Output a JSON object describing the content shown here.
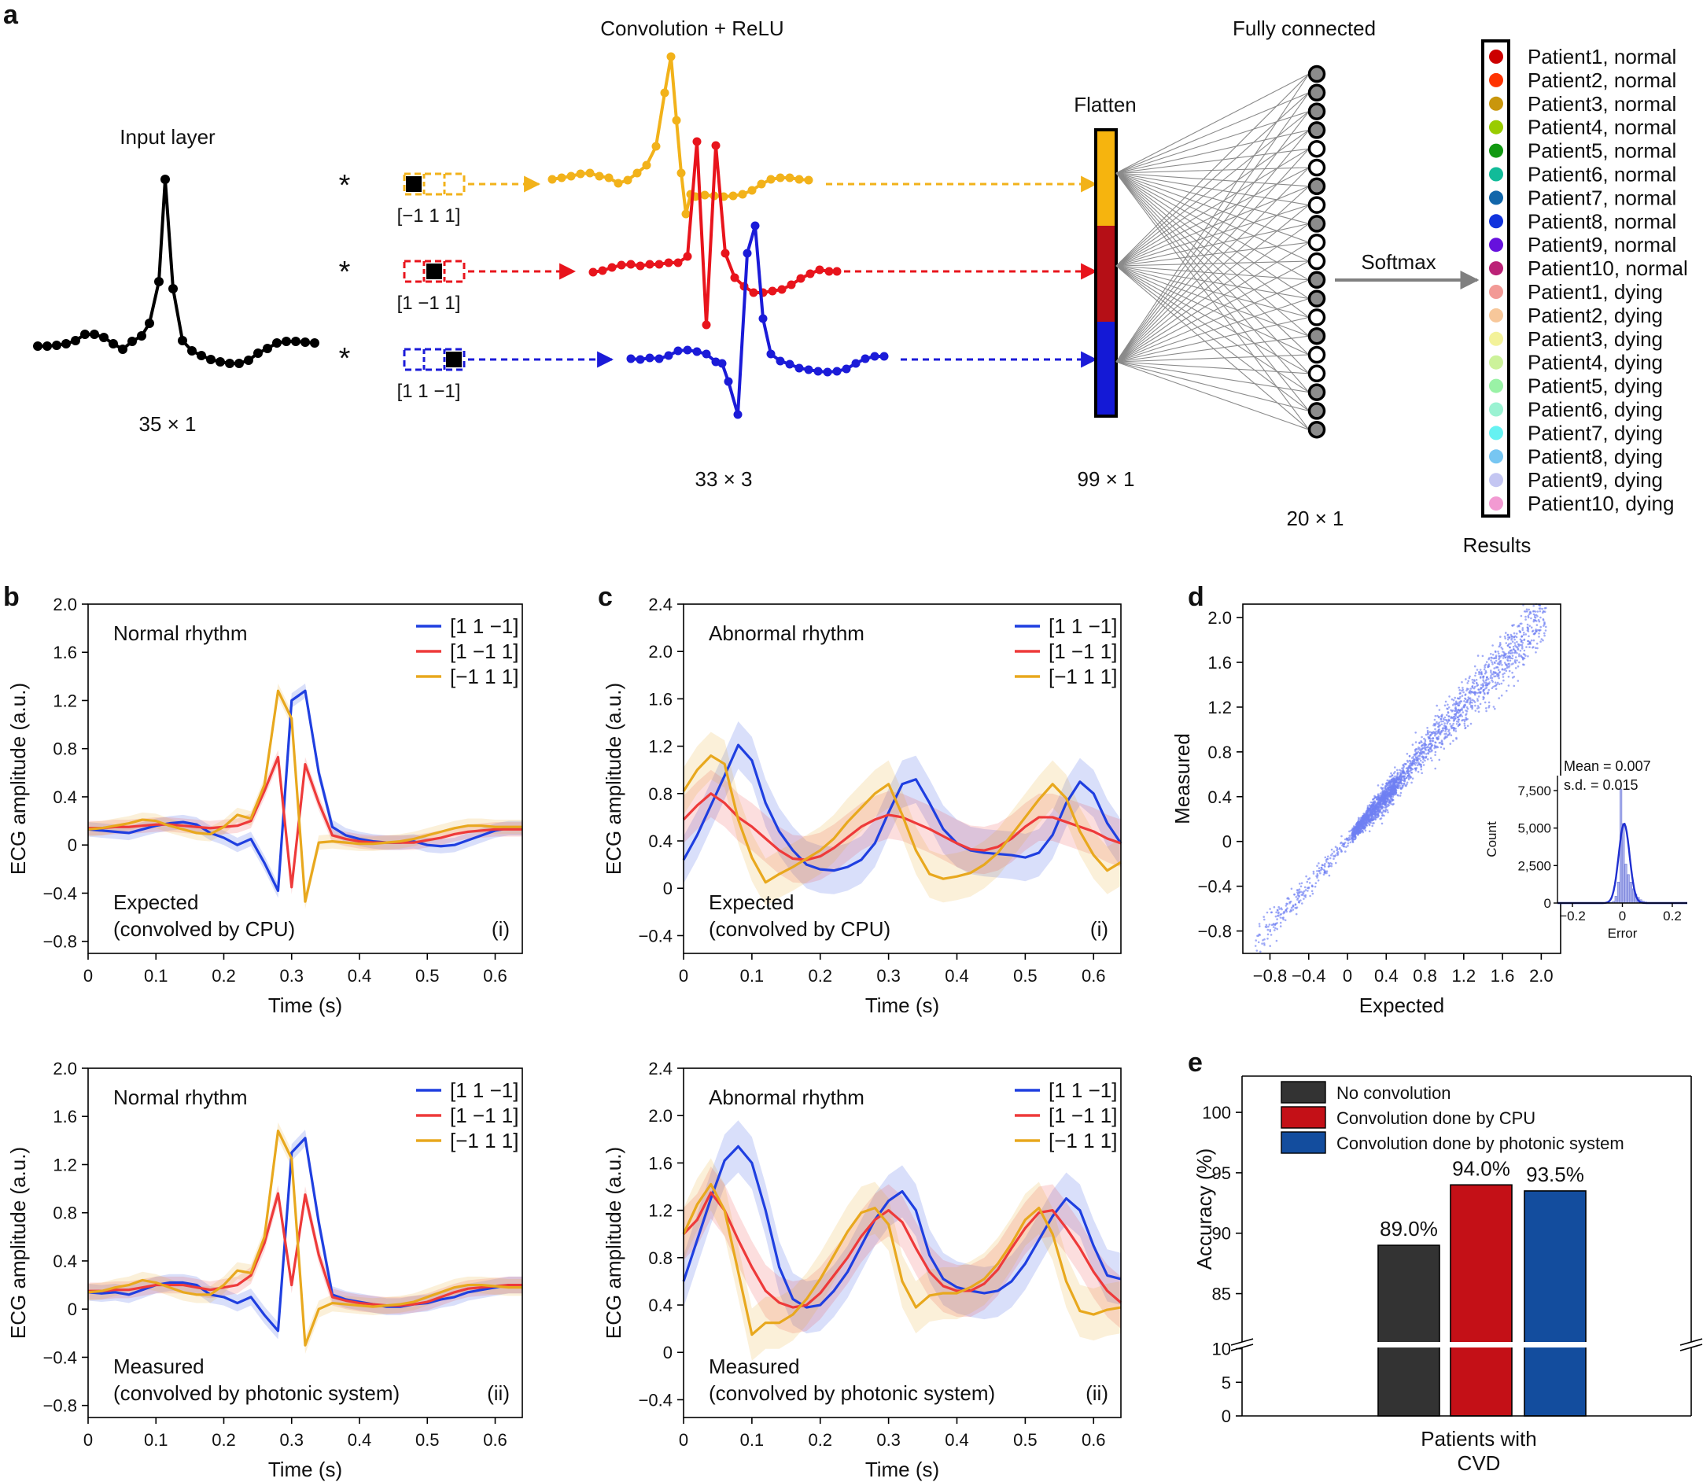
{
  "panel_labels": {
    "a": "a",
    "b": "b",
    "c": "c",
    "d": "d",
    "e": "e"
  },
  "diagram": {
    "input_title": "Input layer",
    "input_dim": "35 × 1",
    "conv_title": "Convolution + ReLU",
    "conv_dim": "33 × 3",
    "flatten_title": "Flatten",
    "flatten_dim": "99 × 1",
    "fc_title": "Fully connected",
    "fc_dim": "20 × 1",
    "softmax_label": "Softmax",
    "results_label": "Results",
    "star": "*",
    "kernels": [
      {
        "label": "[−1 1 1]",
        "color": "#f2b21a"
      },
      {
        "label": "[1 −1 1]",
        "color": "#e8141c"
      },
      {
        "label": "[1 1 −1]",
        "color": "#1b1bd8"
      }
    ],
    "flatten_colors": [
      "#f6b40e",
      "#b50f16",
      "#1419d6"
    ],
    "fc_node_fill": [
      "grey",
      "grey",
      "grey",
      "grey",
      "white",
      "white",
      "grey",
      "white",
      "grey",
      "white",
      "white",
      "grey",
      "grey",
      "white",
      "grey",
      "white",
      "white",
      "grey",
      "grey",
      "grey"
    ],
    "results": [
      {
        "label": "Patient1, normal",
        "color": "#cc0000"
      },
      {
        "label": "Patient2, normal",
        "color": "#ff3300"
      },
      {
        "label": "Patient3, normal",
        "color": "#c9960c"
      },
      {
        "label": "Patient4, normal",
        "color": "#99cc00"
      },
      {
        "label": "Patient5, normal",
        "color": "#119911"
      },
      {
        "label": "Patient6, normal",
        "color": "#11bb99"
      },
      {
        "label": "Patient7, normal",
        "color": "#1166aa"
      },
      {
        "label": "Patient8, normal",
        "color": "#1133dd"
      },
      {
        "label": "Patient9, normal",
        "color": "#6611dd"
      },
      {
        "label": "Patient10, normal",
        "color": "#bb2277"
      },
      {
        "label": "Patient1, dying",
        "color": "#f29a96"
      },
      {
        "label": "Patient2, dying",
        "color": "#f7c79a"
      },
      {
        "label": "Patient3, dying",
        "color": "#f3f29a"
      },
      {
        "label": "Patient4, dying",
        "color": "#ccf29a"
      },
      {
        "label": "Patient5, dying",
        "color": "#9af2a6"
      },
      {
        "label": "Patient6, dying",
        "color": "#9af2d2"
      },
      {
        "label": "Patient7, dying",
        "color": "#66f2f2"
      },
      {
        "label": "Patient8, dying",
        "color": "#77c6f2"
      },
      {
        "label": "Patient9, dying",
        "color": "#c4c6f2"
      },
      {
        "label": "Patient10, dying",
        "color": "#f29ad2"
      }
    ]
  },
  "chart_data": [
    {
      "id": "b-i",
      "type": "line",
      "title": "Normal rhythm",
      "note_line1": "Expected",
      "note_line2": "(convolved by CPU)",
      "tag": "(i)",
      "xlabel": "Time (s)",
      "ylabel": "ECG amplitude (a.u.)",
      "xlim": [
        0,
        0.64
      ],
      "ylim": [
        -0.9,
        2.0
      ],
      "xticks": [
        0,
        0.1,
        0.2,
        0.3,
        0.4,
        0.5,
        0.6
      ],
      "xtick_labels": [
        "0",
        "0.1",
        "0.2",
        "0.3",
        "0.4",
        "0.5",
        "0.6"
      ],
      "yticks": [
        -0.8,
        -0.4,
        0,
        0.4,
        0.8,
        1.2,
        1.6,
        2.0
      ],
      "ytick_labels": [
        "−0.8",
        "−0.4",
        "0",
        "0.4",
        "0.8",
        "1.2",
        "1.6",
        "2.0"
      ],
      "band": 0.06,
      "x": [
        0,
        0.02,
        0.04,
        0.06,
        0.08,
        0.1,
        0.12,
        0.14,
        0.16,
        0.18,
        0.2,
        0.22,
        0.24,
        0.26,
        0.28,
        0.3,
        0.32,
        0.34,
        0.36,
        0.38,
        0.4,
        0.42,
        0.44,
        0.46,
        0.48,
        0.5,
        0.52,
        0.54,
        0.56,
        0.58,
        0.6,
        0.62,
        0.64
      ],
      "series": [
        {
          "name": "[1 1 −1]",
          "color": "#1f3fe0",
          "values": [
            0.13,
            0.12,
            0.11,
            0.1,
            0.13,
            0.16,
            0.18,
            0.19,
            0.17,
            0.1,
            0.06,
            0.0,
            0.05,
            -0.15,
            -0.38,
            1.2,
            1.28,
            0.6,
            0.15,
            0.08,
            0.05,
            0.03,
            0.02,
            0.02,
            0.03,
            0.0,
            -0.01,
            0.0,
            0.04,
            0.08,
            0.12,
            0.14,
            0.14
          ]
        },
        {
          "name": "[1 −1 1]",
          "color": "#ee3a3a",
          "values": [
            0.14,
            0.14,
            0.15,
            0.15,
            0.16,
            0.17,
            0.17,
            0.16,
            0.15,
            0.14,
            0.15,
            0.16,
            0.2,
            0.45,
            0.73,
            -0.35,
            0.67,
            0.35,
            0.08,
            0.05,
            0.03,
            0.02,
            0.02,
            0.02,
            0.02,
            0.04,
            0.06,
            0.09,
            0.11,
            0.12,
            0.13,
            0.13,
            0.13
          ]
        },
        {
          "name": "[−1 1 1]",
          "color": "#e8a81e",
          "values": [
            0.13,
            0.14,
            0.16,
            0.18,
            0.21,
            0.2,
            0.16,
            0.13,
            0.1,
            0.09,
            0.15,
            0.25,
            0.22,
            0.5,
            1.28,
            1.05,
            -0.47,
            0.02,
            0.03,
            0.02,
            0.01,
            0.01,
            0.02,
            0.03,
            0.05,
            0.08,
            0.11,
            0.14,
            0.16,
            0.16,
            0.15,
            0.15,
            0.15
          ]
        }
      ]
    },
    {
      "id": "c-i",
      "type": "line",
      "title": "Abnormal rhythm",
      "note_line1": "Expected",
      "note_line2": "(convolved by CPU)",
      "tag": "(i)",
      "xlabel": "Time (s)",
      "ylabel": "ECG amplitude (a.u.)",
      "xlim": [
        0,
        0.64
      ],
      "ylim": [
        -0.55,
        2.4
      ],
      "xticks": [
        0,
        0.1,
        0.2,
        0.3,
        0.4,
        0.5,
        0.6
      ],
      "xtick_labels": [
        "0",
        "0.1",
        "0.2",
        "0.3",
        "0.4",
        "0.5",
        "0.6"
      ],
      "yticks": [
        -0.4,
        0,
        0.4,
        0.8,
        1.2,
        1.6,
        2.0,
        2.4
      ],
      "ytick_labels": [
        "−0.4",
        "0",
        "0.4",
        "0.8",
        "1.2",
        "1.6",
        "2.0",
        "2.4"
      ],
      "band": 0.2,
      "x": [
        0,
        0.02,
        0.04,
        0.06,
        0.08,
        0.1,
        0.12,
        0.14,
        0.16,
        0.18,
        0.2,
        0.22,
        0.24,
        0.26,
        0.28,
        0.3,
        0.32,
        0.34,
        0.36,
        0.38,
        0.4,
        0.42,
        0.44,
        0.46,
        0.48,
        0.5,
        0.52,
        0.54,
        0.56,
        0.58,
        0.6,
        0.62,
        0.64
      ],
      "series": [
        {
          "name": "[1 1 −1]",
          "color": "#1f3fe0",
          "values": [
            0.24,
            0.45,
            0.7,
            0.95,
            1.21,
            1.08,
            0.72,
            0.48,
            0.32,
            0.2,
            0.16,
            0.15,
            0.18,
            0.24,
            0.38,
            0.64,
            0.88,
            0.92,
            0.72,
            0.5,
            0.38,
            0.32,
            0.3,
            0.29,
            0.28,
            0.26,
            0.3,
            0.45,
            0.72,
            0.9,
            0.8,
            0.55,
            0.38
          ]
        },
        {
          "name": "[1 −1 1]",
          "color": "#ee3a3a",
          "values": [
            0.58,
            0.7,
            0.8,
            0.72,
            0.6,
            0.52,
            0.42,
            0.32,
            0.25,
            0.24,
            0.27,
            0.34,
            0.43,
            0.52,
            0.58,
            0.62,
            0.6,
            0.55,
            0.5,
            0.44,
            0.38,
            0.33,
            0.32,
            0.35,
            0.42,
            0.52,
            0.6,
            0.6,
            0.56,
            0.52,
            0.48,
            0.42,
            0.38
          ]
        },
        {
          "name": "[−1 1 1]",
          "color": "#e8a81e",
          "values": [
            0.82,
            1.0,
            1.12,
            1.05,
            0.58,
            0.26,
            0.05,
            0.12,
            0.18,
            0.25,
            0.32,
            0.42,
            0.56,
            0.68,
            0.8,
            0.88,
            0.62,
            0.32,
            0.12,
            0.08,
            0.1,
            0.13,
            0.2,
            0.3,
            0.45,
            0.6,
            0.75,
            0.88,
            0.76,
            0.48,
            0.28,
            0.15,
            0.22
          ]
        }
      ]
    },
    {
      "id": "b-ii",
      "type": "line",
      "title": "Normal rhythm",
      "note_line1": "Measured",
      "note_line2": "(convolved by photonic system)",
      "tag": "(ii)",
      "xlabel": "Time (s)",
      "ylabel": "ECG amplitude (a.u.)",
      "xlim": [
        0,
        0.64
      ],
      "ylim": [
        -0.9,
        2.0
      ],
      "xticks": [
        0,
        0.1,
        0.2,
        0.3,
        0.4,
        0.5,
        0.6
      ],
      "xtick_labels": [
        "0",
        "0.1",
        "0.2",
        "0.3",
        "0.4",
        "0.5",
        "0.6"
      ],
      "yticks": [
        -0.8,
        -0.4,
        0,
        0.4,
        0.8,
        1.2,
        1.6,
        2.0
      ],
      "ytick_labels": [
        "−0.8",
        "−0.4",
        "0",
        "0.4",
        "0.8",
        "1.2",
        "1.6",
        "2.0"
      ],
      "band": 0.07,
      "x": [
        0,
        0.02,
        0.04,
        0.06,
        0.08,
        0.1,
        0.12,
        0.14,
        0.16,
        0.18,
        0.2,
        0.22,
        0.24,
        0.26,
        0.28,
        0.3,
        0.32,
        0.34,
        0.36,
        0.38,
        0.4,
        0.42,
        0.44,
        0.46,
        0.48,
        0.5,
        0.52,
        0.54,
        0.56,
        0.58,
        0.6,
        0.62,
        0.64
      ],
      "series": [
        {
          "name": "[1 1 −1]",
          "color": "#1f3fe0",
          "values": [
            0.14,
            0.13,
            0.14,
            0.12,
            0.16,
            0.2,
            0.22,
            0.22,
            0.2,
            0.12,
            0.1,
            0.05,
            0.1,
            -0.05,
            -0.18,
            1.3,
            1.42,
            0.72,
            0.12,
            0.08,
            0.06,
            0.04,
            0.02,
            0.02,
            0.04,
            0.05,
            0.08,
            0.1,
            0.14,
            0.16,
            0.18,
            0.2,
            0.2
          ]
        },
        {
          "name": "[1 −1 1]",
          "color": "#ee3a3a",
          "values": [
            0.15,
            0.15,
            0.16,
            0.16,
            0.18,
            0.2,
            0.2,
            0.2,
            0.18,
            0.16,
            0.18,
            0.2,
            0.28,
            0.55,
            0.96,
            0.2,
            0.95,
            0.45,
            0.1,
            0.07,
            0.05,
            0.04,
            0.03,
            0.03,
            0.04,
            0.06,
            0.1,
            0.14,
            0.17,
            0.18,
            0.19,
            0.2,
            0.2
          ]
        },
        {
          "name": "[−1 1 1]",
          "color": "#e8a81e",
          "values": [
            0.14,
            0.15,
            0.18,
            0.2,
            0.24,
            0.22,
            0.18,
            0.14,
            0.12,
            0.12,
            0.2,
            0.32,
            0.3,
            0.6,
            1.48,
            1.25,
            -0.3,
            0.0,
            0.05,
            0.04,
            0.03,
            0.02,
            0.03,
            0.04,
            0.06,
            0.1,
            0.14,
            0.18,
            0.2,
            0.2,
            0.19,
            0.18,
            0.18
          ]
        }
      ]
    },
    {
      "id": "c-ii",
      "type": "line",
      "title": "Abnormal rhythm",
      "note_line1": "Measured",
      "note_line2": "(convolved by   photonic system)",
      "tag": "(ii)",
      "xlabel": "Time (s)",
      "ylabel": "ECG amplitude (a.u.)",
      "xlim": [
        0,
        0.64
      ],
      "ylim": [
        -0.55,
        2.4
      ],
      "xticks": [
        0,
        0.1,
        0.2,
        0.3,
        0.4,
        0.5,
        0.6
      ],
      "xtick_labels": [
        "0",
        "0.1",
        "0.2",
        "0.3",
        "0.4",
        "0.5",
        "0.6"
      ],
      "yticks": [
        -0.4,
        0,
        0.4,
        0.8,
        1.2,
        1.6,
        2.0,
        2.4
      ],
      "ytick_labels": [
        "−0.4",
        "0",
        "0.4",
        "0.8",
        "1.2",
        "1.6",
        "2.0",
        "2.4"
      ],
      "band": 0.22,
      "x": [
        0,
        0.02,
        0.04,
        0.06,
        0.08,
        0.1,
        0.12,
        0.14,
        0.16,
        0.18,
        0.2,
        0.22,
        0.24,
        0.26,
        0.28,
        0.3,
        0.32,
        0.34,
        0.36,
        0.38,
        0.4,
        0.42,
        0.44,
        0.46,
        0.48,
        0.5,
        0.52,
        0.54,
        0.56,
        0.58,
        0.6,
        0.62,
        0.64
      ],
      "series": [
        {
          "name": "[1 1 −1]",
          "color": "#1f3fe0",
          "values": [
            0.6,
            0.95,
            1.3,
            1.62,
            1.74,
            1.6,
            1.2,
            0.72,
            0.45,
            0.38,
            0.4,
            0.52,
            0.68,
            0.9,
            1.12,
            1.28,
            1.36,
            1.2,
            0.82,
            0.62,
            0.55,
            0.52,
            0.5,
            0.52,
            0.6,
            0.75,
            0.95,
            1.15,
            1.3,
            1.2,
            0.9,
            0.65,
            0.62
          ]
        },
        {
          "name": "[1 −1 1]",
          "color": "#ee3a3a",
          "values": [
            1.0,
            1.12,
            1.35,
            1.2,
            0.95,
            0.72,
            0.52,
            0.42,
            0.38,
            0.4,
            0.5,
            0.65,
            0.8,
            0.98,
            1.12,
            1.2,
            1.1,
            0.88,
            0.68,
            0.56,
            0.52,
            0.52,
            0.58,
            0.7,
            0.88,
            1.05,
            1.18,
            1.2,
            1.05,
            0.88,
            0.68,
            0.52,
            0.42
          ]
        },
        {
          "name": "[−1 1 1]",
          "color": "#e8a81e",
          "values": [
            1.0,
            1.25,
            1.42,
            1.2,
            0.68,
            0.15,
            0.25,
            0.25,
            0.32,
            0.45,
            0.62,
            0.82,
            1.02,
            1.18,
            1.22,
            1.08,
            0.6,
            0.38,
            0.48,
            0.5,
            0.5,
            0.55,
            0.62,
            0.75,
            0.92,
            1.12,
            1.22,
            1.0,
            0.6,
            0.35,
            0.32,
            0.36,
            0.38
          ]
        }
      ]
    },
    {
      "id": "d",
      "type": "scatter",
      "xlabel": "Expected",
      "ylabel": "Measured",
      "xlim": [
        -1.08,
        2.2
      ],
      "ylim": [
        -1.0,
        2.12
      ],
      "xticks": [
        -0.8,
        -0.4,
        0,
        0.4,
        0.8,
        1.2,
        1.6,
        2.0
      ],
      "xtick_labels": [
        "−0.8",
        "−0.4",
        "0",
        "0.4",
        "0.8",
        "1.2",
        "1.6",
        "2.0"
      ],
      "yticks": [
        -0.8,
        -0.4,
        0,
        0.4,
        0.8,
        1.2,
        1.6,
        2.0
      ],
      "ytick_labels": [
        "−0.8",
        "−0.4",
        "0",
        "0.4",
        "0.8",
        "1.2",
        "1.6",
        "2.0"
      ],
      "color": "#6f7ff2",
      "point_count": 2600,
      "inset": {
        "type": "histogram",
        "mean_text": "Mean = 0.007",
        "sd_text": "s.d. = 0.015",
        "mean": 0.007,
        "sd": 0.015,
        "xlabel": "Error",
        "ylabel": "Count",
        "xlim": [
          -0.26,
          0.26
        ],
        "ylim": [
          0,
          8500
        ],
        "xticks": [
          -0.2,
          0,
          0.2
        ],
        "xtick_labels": [
          "−0.2",
          "0",
          "0.2"
        ],
        "yticks": [
          0,
          2500,
          5000,
          7500
        ],
        "ytick_labels": [
          "0",
          "2,500",
          "5,000",
          "7,500"
        ],
        "bin_edges_start": -0.05,
        "bin_width": 0.01,
        "counts": [
          40,
          120,
          450,
          1400,
          7600,
          5300,
          2600,
          1900,
          1400,
          950,
          600,
          380,
          220,
          120,
          70,
          40
        ]
      }
    },
    {
      "id": "e",
      "type": "bar",
      "ylabel": "Accuracy (%)",
      "xlabel": "Patients with CVD",
      "xlabel_line1": "Patients with",
      "xlabel_line2": "CVD",
      "categories": [
        "No convolution",
        "Convolution done by CPU",
        "Convolution done by photonic system"
      ],
      "values": [
        89.0,
        94.0,
        93.5
      ],
      "value_labels": [
        "89.0%",
        "94.0%",
        "93.5%"
      ],
      "colors": [
        "#333333",
        "#c41017",
        "#134d9e"
      ],
      "upper_ylim": [
        81,
        103
      ],
      "upper_yticks": [
        85,
        90,
        95,
        100
      ],
      "upper_ytick_labels": [
        "85",
        "90",
        "95",
        "100"
      ],
      "lower_ylim": [
        0,
        11
      ],
      "lower_yticks": [
        0,
        5,
        10
      ],
      "lower_ytick_labels": [
        "0",
        "5",
        "10"
      ],
      "axis_break": true
    }
  ]
}
